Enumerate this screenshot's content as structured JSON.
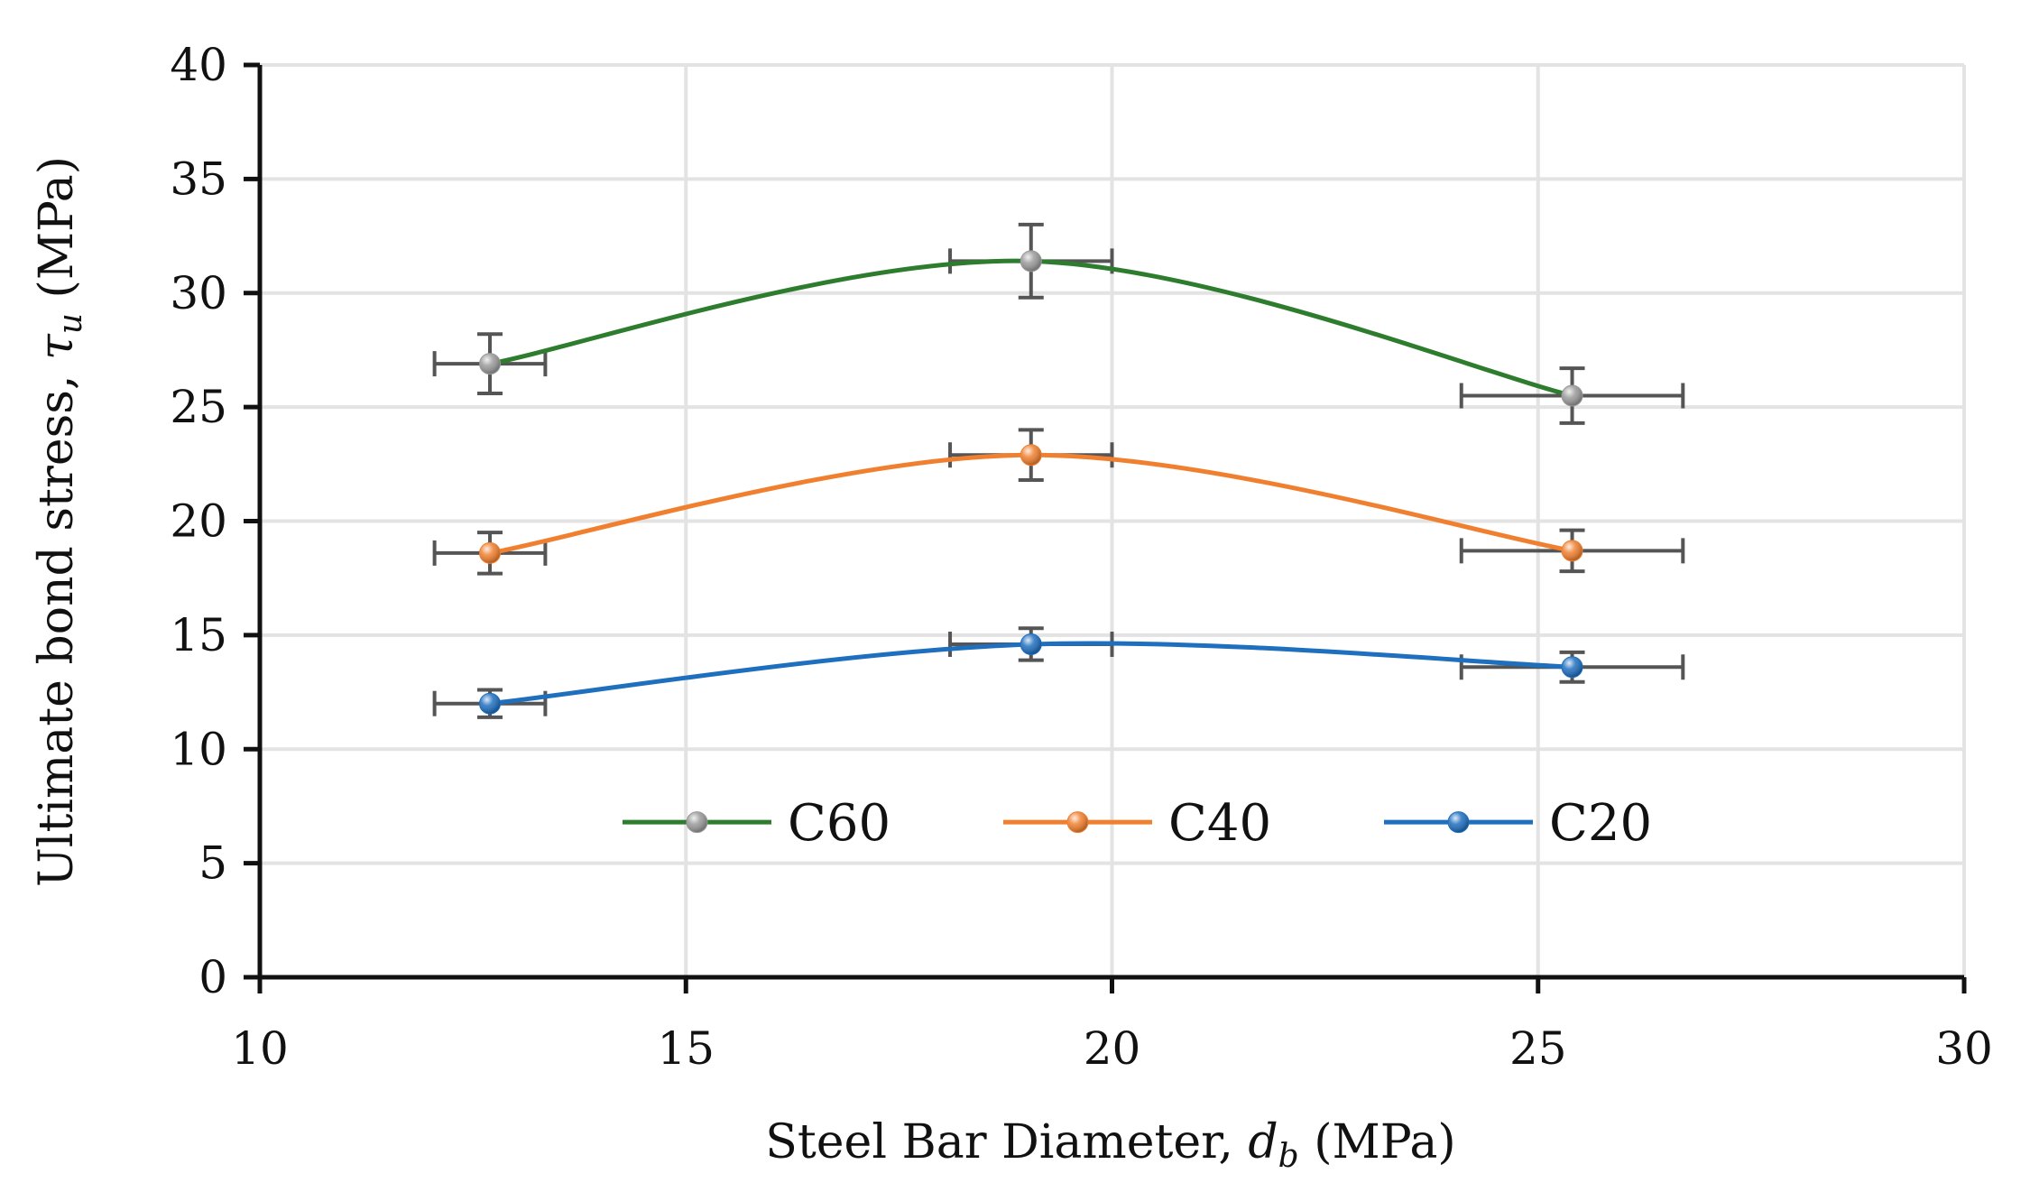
{
  "chart_data": {
    "type": "line",
    "title": "",
    "xlabel": {
      "prefix": "Steel Bar Diameter, ",
      "symbol": "d",
      "subscript": "b",
      "suffix": " (MPa)"
    },
    "ylabel": {
      "prefix": "Ultimate bond stress, ",
      "symbol": "τ",
      "subscript": "u",
      "suffix": " (MPa)"
    },
    "xlim": [
      10,
      30
    ],
    "ylim": [
      0,
      40
    ],
    "x_ticks": [
      10,
      15,
      20,
      25,
      30
    ],
    "y_ticks": [
      0,
      5,
      10,
      15,
      20,
      25,
      30,
      35,
      40
    ],
    "grid": true,
    "smooth": true,
    "legend_position": "bottom-center",
    "x": [
      12.7,
      19.05,
      25.4
    ],
    "x_error": [
      0.65,
      0.95,
      1.3
    ],
    "series": [
      {
        "name": "C60",
        "color": "#2e7d2e",
        "marker_color": "#9a9a9a",
        "values": [
          26.9,
          31.4,
          25.5
        ],
        "y_error": [
          1.3,
          1.6,
          1.2
        ]
      },
      {
        "name": "C40",
        "color": "#f08030",
        "marker_color": "#f08030",
        "values": [
          18.6,
          22.9,
          18.7
        ],
        "y_error": [
          0.9,
          1.1,
          0.9
        ]
      },
      {
        "name": "C20",
        "color": "#1f6fbf",
        "marker_color": "#1f6fbf",
        "values": [
          12.0,
          14.6,
          13.6
        ],
        "y_error": [
          0.6,
          0.7,
          0.65
        ]
      }
    ],
    "error_bar_color": "#555555"
  }
}
